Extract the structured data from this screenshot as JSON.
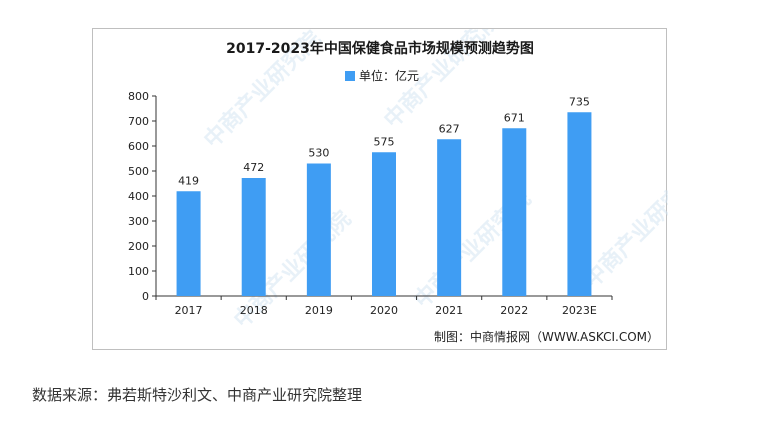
{
  "chart_data": {
    "type": "bar",
    "title": "2017-2023年中国保健食品市场规模预测趋势图",
    "legend": {
      "label": "单位：亿元",
      "position": "top"
    },
    "categories": [
      "2017",
      "2018",
      "2019",
      "2020",
      "2021",
      "2022",
      "2023E"
    ],
    "series": [
      {
        "name": "单位：亿元",
        "values": [
          419,
          472,
          530,
          575,
          627,
          671,
          735
        ]
      }
    ],
    "ylim": [
      0,
      800
    ],
    "yticks": [
      0,
      100,
      200,
      300,
      400,
      500,
      600,
      700,
      800
    ],
    "grid": false,
    "bar_color": "#3f9df3",
    "data_labels": true
  },
  "credit": "制图：中商情报网（WWW.ASKCI.COM）",
  "watermark": "中商产业研究院",
  "source_note": "数据来源：弗若斯特沙利文、中商产业研究院整理"
}
